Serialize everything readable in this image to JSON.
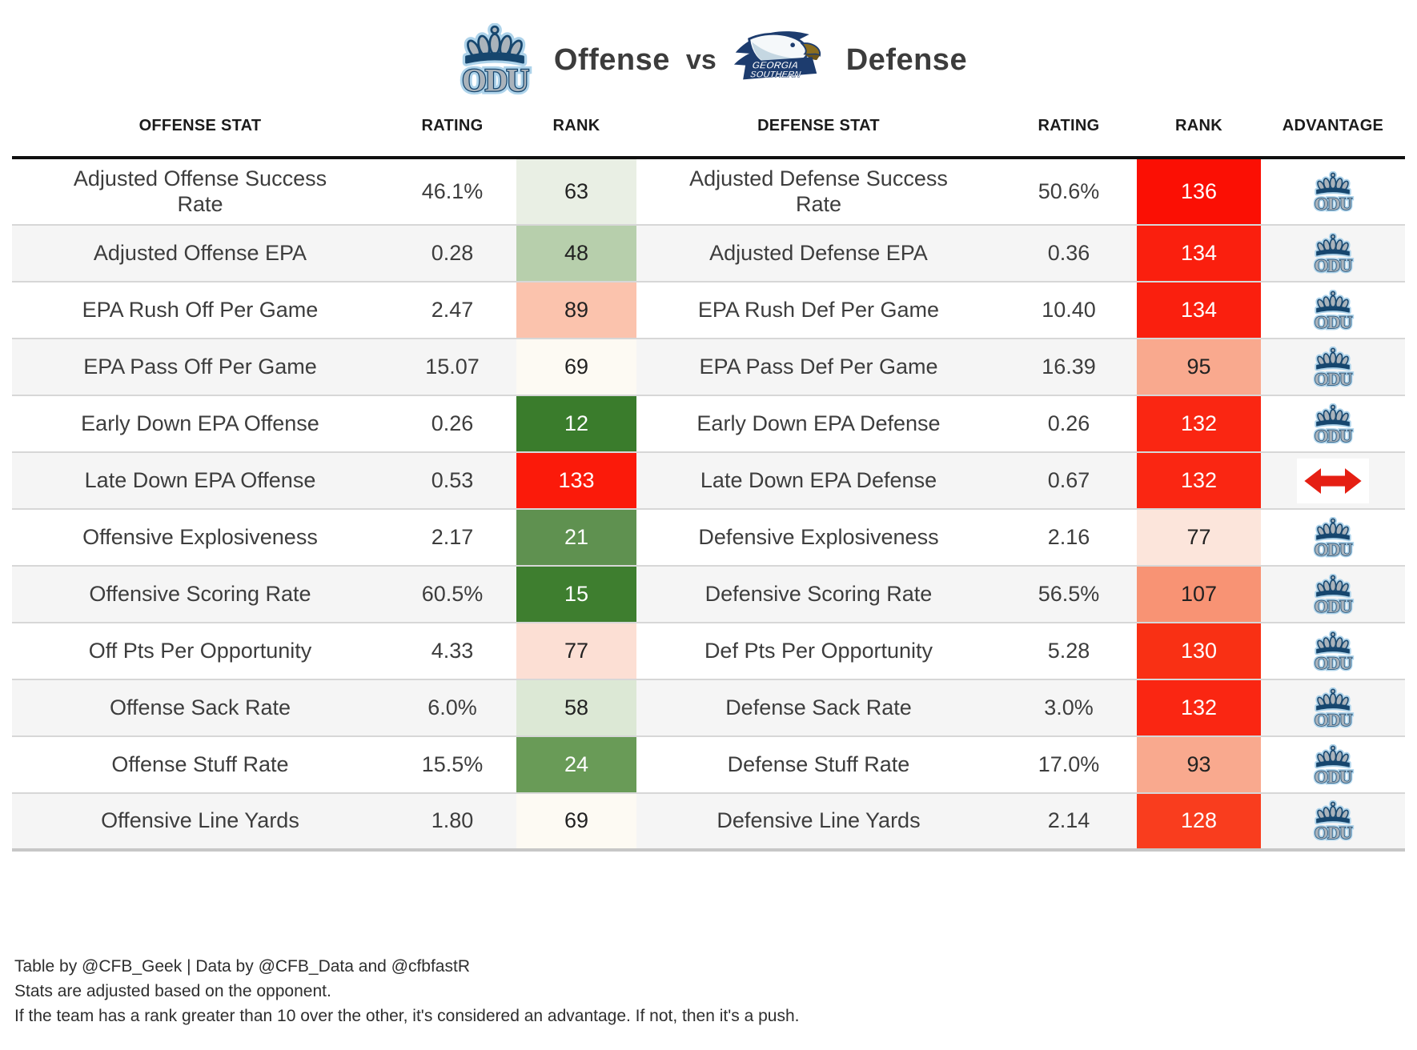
{
  "title": {
    "left_team": "ODU",
    "left_label": "Offense",
    "vs": "vs",
    "right_team": "Georgia Southern",
    "right_label": "Defense"
  },
  "columns": [
    "OFFENSE STAT",
    "RATING",
    "RANK",
    "DEFENSE STAT",
    "RATING",
    "RANK",
    "ADVANTAGE"
  ],
  "chart_data": {
    "type": "table",
    "title": "ODU Offense vs Georgia Southern Defense",
    "columns": [
      "OFFENSE STAT",
      "RATING",
      "RANK",
      "DEFENSE STAT",
      "RATING",
      "RANK",
      "ADVANTAGE"
    ],
    "rows_summary": "12 paired offense/defense stats; rank cells color-coded green (good) to red (bad); advantage column shows ODU logo except Late Down EPA which is a push"
  },
  "rows": [
    {
      "off_stat": "Adjusted Offense Success Rate",
      "off_rating": "46.1%",
      "off_rank": "63",
      "off_rank_bg": "#e9efe4",
      "off_rank_color": "#222222",
      "def_stat": "Adjusted Defense Success Rate",
      "def_rating": "50.6%",
      "def_rank": "136",
      "def_rank_bg": "#fb0f04",
      "def_rank_color": "#ffffff",
      "advantage": "odu"
    },
    {
      "off_stat": "Adjusted Offense EPA",
      "off_rating": "0.28",
      "off_rank": "48",
      "off_rank_bg": "#b7cfac",
      "off_rank_color": "#222222",
      "def_stat": "Adjusted Defense EPA",
      "def_rating": "0.36",
      "def_rank": "134",
      "def_rank_bg": "#fa1f0e",
      "def_rank_color": "#ffffff",
      "advantage": "odu"
    },
    {
      "off_stat": "EPA Rush Off Per Game",
      "off_rating": "2.47",
      "off_rank": "89",
      "off_rank_bg": "#fbc3ad",
      "off_rank_color": "#222222",
      "def_stat": "EPA Rush Def Per Game",
      "def_rating": "10.40",
      "def_rank": "134",
      "def_rank_bg": "#fa1f0e",
      "def_rank_color": "#ffffff",
      "advantage": "odu"
    },
    {
      "off_stat": "EPA Pass Off Per Game",
      "off_rating": "15.07",
      "off_rank": "69",
      "off_rank_bg": "#fdfaf3",
      "off_rank_color": "#222222",
      "def_stat": "EPA Pass Def Per Game",
      "def_rating": "16.39",
      "def_rank": "95",
      "def_rank_bg": "#f9a98e",
      "def_rank_color": "#222222",
      "advantage": "odu"
    },
    {
      "off_stat": "Early Down EPA Offense",
      "off_rating": "0.26",
      "off_rank": "12",
      "off_rank_bg": "#3a7c2c",
      "off_rank_color": "#ffffff",
      "def_stat": "Early Down EPA Defense",
      "def_rating": "0.26",
      "def_rank": "132",
      "def_rank_bg": "#fa2612",
      "def_rank_color": "#ffffff",
      "advantage": "odu"
    },
    {
      "off_stat": "Late Down EPA Offense",
      "off_rating": "0.53",
      "off_rank": "133",
      "off_rank_bg": "#fb1a0a",
      "off_rank_color": "#ffffff",
      "def_stat": "Late Down EPA Defense",
      "def_rating": "0.67",
      "def_rank": "132",
      "def_rank_bg": "#fa2612",
      "def_rank_color": "#ffffff",
      "advantage": "push"
    },
    {
      "off_stat": "Offensive Explosiveness",
      "off_rating": "2.17",
      "off_rank": "21",
      "off_rank_bg": "#5f9150",
      "off_rank_color": "#ffffff",
      "def_stat": "Defensive Explosiveness",
      "def_rating": "2.16",
      "def_rank": "77",
      "def_rank_bg": "#fce5db",
      "def_rank_color": "#222222",
      "advantage": "odu"
    },
    {
      "off_stat": "Offensive Scoring Rate",
      "off_rating": "60.5%",
      "off_rank": "15",
      "off_rank_bg": "#3e7e2f",
      "off_rank_color": "#ffffff",
      "def_stat": "Defensive Scoring Rate",
      "def_rating": "56.5%",
      "def_rank": "107",
      "def_rank_bg": "#f89374",
      "def_rank_color": "#222222",
      "advantage": "odu"
    },
    {
      "off_stat": "Off Pts Per Opportunity",
      "off_rating": "4.33",
      "off_rank": "77",
      "off_rank_bg": "#fcdfd4",
      "off_rank_color": "#222222",
      "def_stat": "Def Pts Per Opportunity",
      "def_rating": "5.28",
      "def_rank": "130",
      "def_rank_bg": "#f93014",
      "def_rank_color": "#ffffff",
      "advantage": "odu"
    },
    {
      "off_stat": "Offense Sack Rate",
      "off_rating": "6.0%",
      "off_rank": "58",
      "off_rank_bg": "#dce8d5",
      "off_rank_color": "#222222",
      "def_stat": "Defense Sack Rate",
      "def_rating": "3.0%",
      "def_rank": "132",
      "def_rank_bg": "#fa2612",
      "def_rank_color": "#ffffff",
      "advantage": "odu"
    },
    {
      "off_stat": "Offense Stuff Rate",
      "off_rating": "15.5%",
      "off_rank": "24",
      "off_rank_bg": "#699b57",
      "off_rank_color": "#ffffff",
      "def_stat": "Defense Stuff Rate",
      "def_rating": "17.0%",
      "def_rank": "93",
      "def_rank_bg": "#f9a98e",
      "def_rank_color": "#222222",
      "advantage": "odu"
    },
    {
      "off_stat": "Offensive Line Yards",
      "off_rating": "1.80",
      "off_rank": "69",
      "off_rank_bg": "#fdfaf3",
      "off_rank_color": "#222222",
      "def_stat": "Defensive Line Yards",
      "def_rating": "2.14",
      "def_rank": "128",
      "def_rank_bg": "#f93d1e",
      "def_rank_color": "#ffffff",
      "advantage": "odu"
    }
  ],
  "footnotes": [
    "Table by @CFB_Geek | Data by @CFB_Data and @cfbfastR",
    "Stats are adjusted based on the opponent.",
    "If the team has a rank greater than 10 over the other, it's considered an advantage. If not, then it's a push."
  ],
  "colors": {
    "odu_navy": "#16466e",
    "odu_silver": "#aab3bb",
    "odu_glow_blue": "#aed3ea",
    "gs_navy": "#1d3c6e",
    "gs_gold": "#8a6d1f",
    "push_red": "#e51f13",
    "good_rank_green": "#3a7c2c",
    "bad_rank_red": "#fb0f04",
    "header_rule": "#101010"
  }
}
